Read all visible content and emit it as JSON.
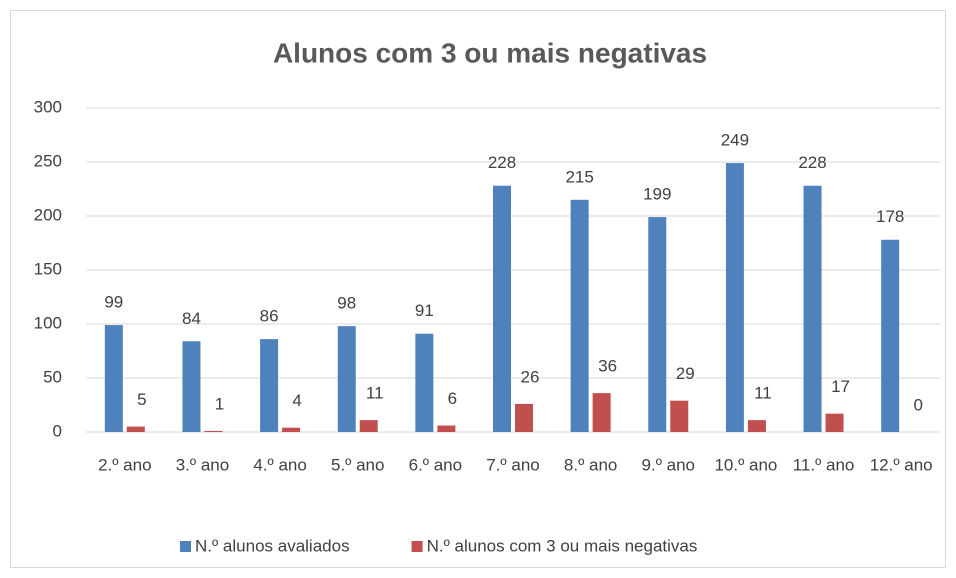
{
  "chart_data": {
    "type": "bar",
    "title": "Alunos com 3 ou mais negativas",
    "categories": [
      "2.º ano",
      "3.º ano",
      "4.º ano",
      "5.º ano",
      "6.º ano",
      "7.º ano",
      "8.º ano",
      "9.º ano",
      "10.º ano",
      "11.º ano",
      "12.º ano"
    ],
    "series": [
      {
        "name": "N.º alunos avaliados",
        "color": "#4f81bd",
        "values": [
          99,
          84,
          86,
          98,
          91,
          228,
          215,
          199,
          249,
          228,
          178
        ]
      },
      {
        "name": "N.º alunos com 3 ou mais negativas",
        "color": "#c0504d",
        "values": [
          5,
          1,
          4,
          11,
          6,
          26,
          36,
          29,
          11,
          17,
          0
        ]
      }
    ],
    "ylim": [
      0,
      300
    ],
    "yticks": [
      0,
      50,
      100,
      150,
      200,
      250,
      300
    ],
    "grid": true,
    "legend": "bottom"
  }
}
